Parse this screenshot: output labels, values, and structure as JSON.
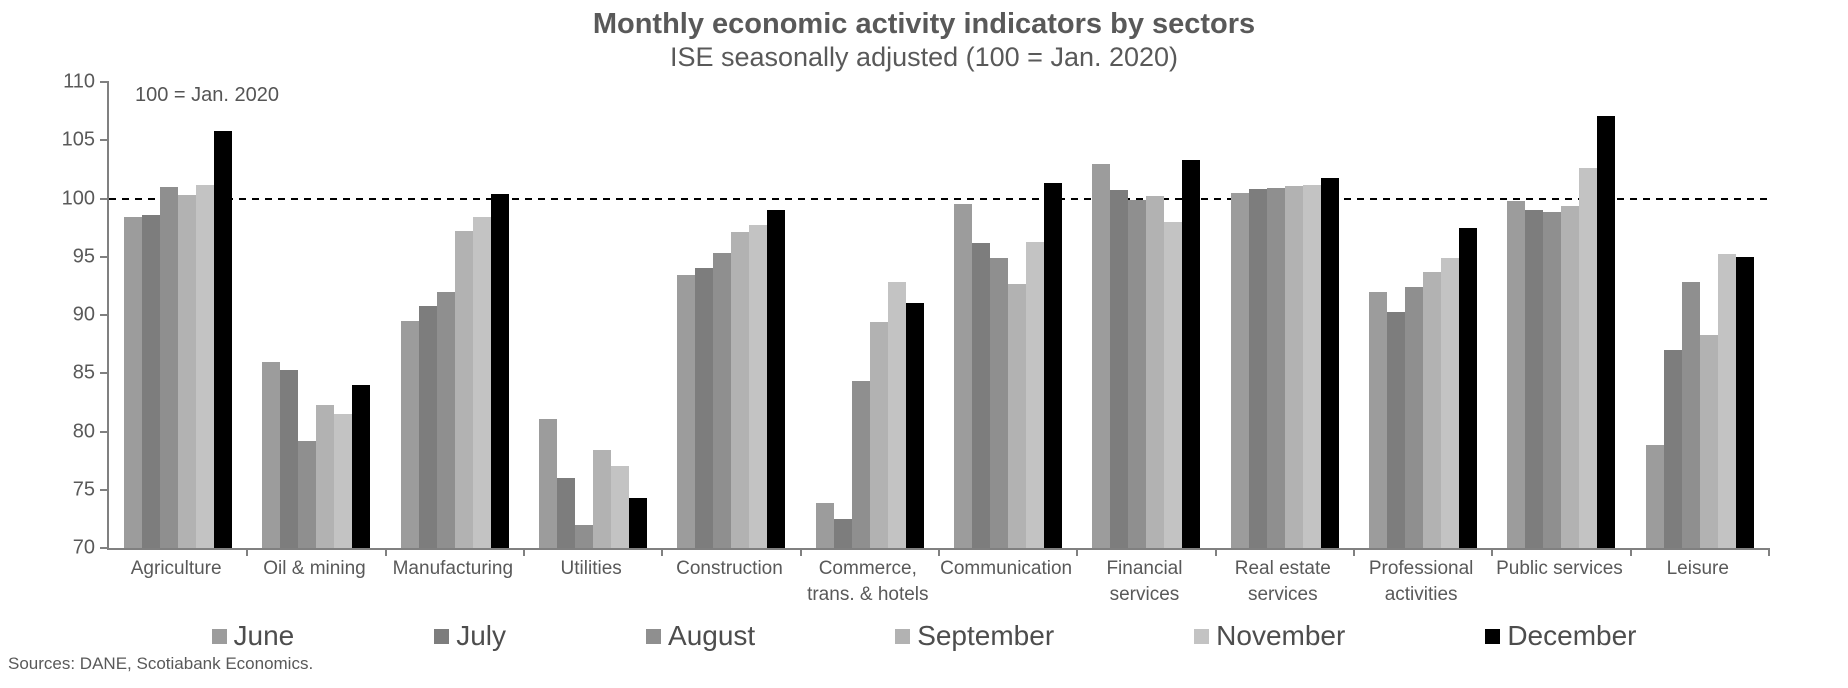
{
  "header": {
    "title": "Monthly economic activity indicators by sectors",
    "subtitle": "ISE seasonally adjusted (100 = Jan. 2020)"
  },
  "annotation": "100 = Jan. 2020",
  "footer": {
    "source": "Sources: DANE, Scotiabank Economics."
  },
  "chart_data": {
    "type": "bar",
    "title": "Monthly economic activity indicators by sectors",
    "subtitle": "ISE seasonally adjusted (100 = Jan. 2020)",
    "annotation": "100 = Jan. 2020",
    "ylim": [
      70,
      110
    ],
    "yticks": [
      70,
      75,
      80,
      85,
      90,
      95,
      100,
      105,
      110
    ],
    "reference_line": 100,
    "grid": false,
    "legend_position": "bottom",
    "axis_color": "#808080",
    "categories": [
      "Agriculture",
      "Oil & mining",
      "Manufacturing",
      "Utilities",
      "Construction",
      "Commerce,\ntrans. & hotels",
      "Communication",
      "Financial\nservices",
      "Real estate\nservices",
      "Professional\nactivities",
      "Public services",
      "Leisure"
    ],
    "series": [
      {
        "name": "June",
        "color": "#9c9c9c",
        "values": [
          98.4,
          86.0,
          89.5,
          81.1,
          93.4,
          73.9,
          99.5,
          103.0,
          100.5,
          92.0,
          99.8,
          78.8
        ]
      },
      {
        "name": "July",
        "color": "#7d7d7d",
        "values": [
          98.6,
          85.3,
          90.8,
          76.0,
          94.0,
          72.5,
          96.2,
          100.7,
          100.8,
          90.3,
          99.0,
          87.0
        ]
      },
      {
        "name": "August",
        "color": "#8f8f8f",
        "values": [
          101.0,
          79.2,
          92.0,
          72.0,
          95.3,
          84.3,
          94.9,
          99.9,
          100.9,
          92.4,
          98.8,
          92.8
        ]
      },
      {
        "name": "September",
        "color": "#b2b2b2",
        "values": [
          100.3,
          82.3,
          97.2,
          78.4,
          97.1,
          89.4,
          92.7,
          100.2,
          101.1,
          93.7,
          99.4,
          88.3
        ]
      },
      {
        "name": "November",
        "color": "#c3c3c3",
        "values": [
          101.2,
          81.5,
          98.4,
          77.0,
          97.7,
          92.8,
          96.3,
          98.0,
          101.2,
          94.9,
          102.6,
          95.2
        ]
      },
      {
        "name": "December",
        "color": "#000000",
        "values": [
          105.8,
          84.0,
          100.4,
          74.3,
          99.0,
          91.0,
          101.3,
          103.3,
          101.8,
          97.5,
          107.1,
          95.0
        ]
      }
    ]
  }
}
